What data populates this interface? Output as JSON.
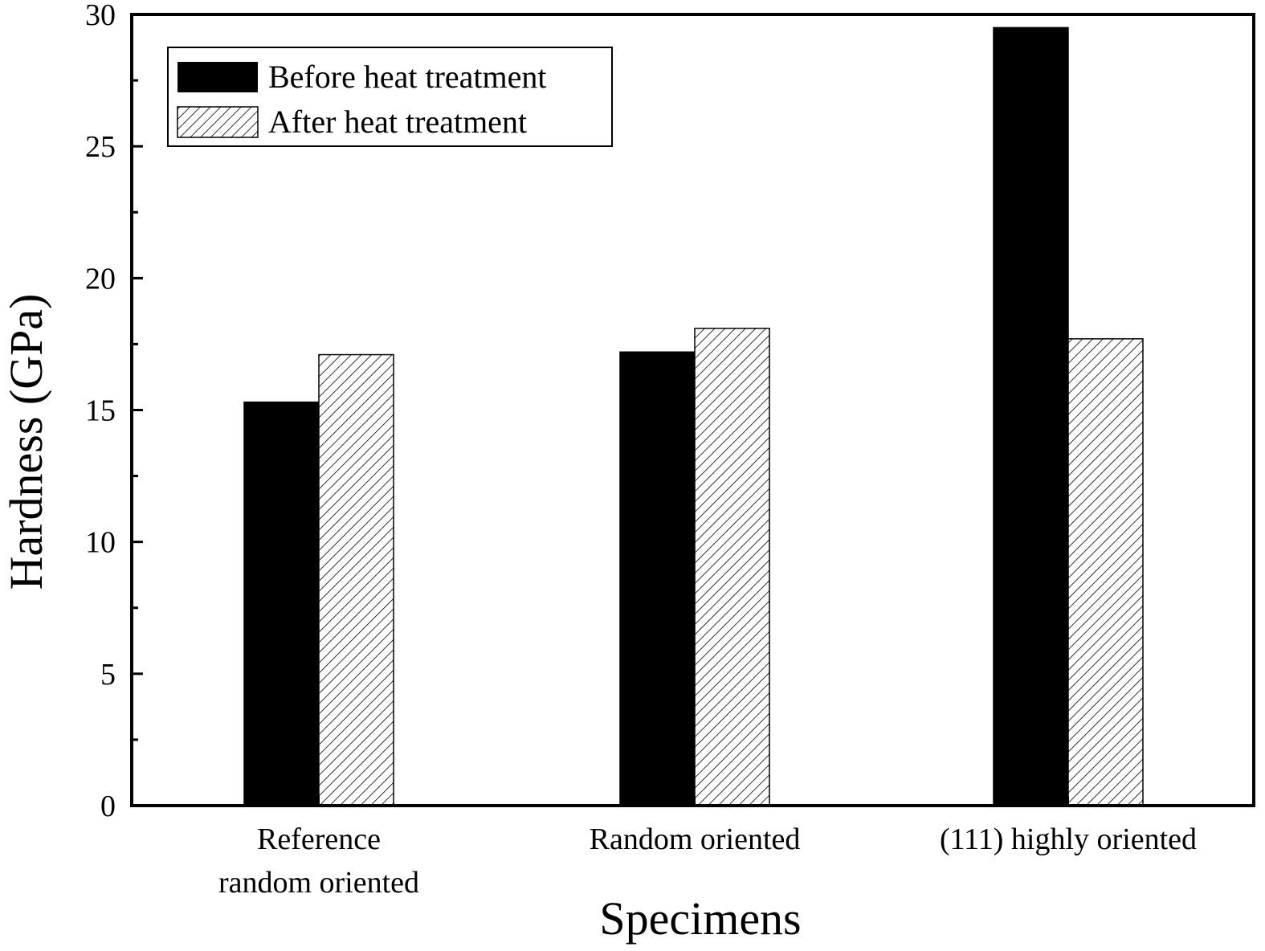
{
  "chart_data": {
    "type": "bar",
    "categories": [
      [
        "Reference",
        "random oriented"
      ],
      [
        "Random oriented"
      ],
      [
        "(111) highly oriented"
      ]
    ],
    "series": [
      {
        "name": "Before heat treatment",
        "values": [
          15.3,
          17.2,
          29.5
        ],
        "fill": "solid",
        "color": "#000000"
      },
      {
        "name": "After heat treatment",
        "values": [
          17.1,
          18.1,
          17.7
        ],
        "fill": "hatched",
        "color": "#000000"
      }
    ],
    "xlabel": "Specimens",
    "ylabel": "Hardness (GPa)",
    "ylim": [
      0,
      30
    ],
    "yticks": [
      "0",
      "5",
      "10",
      "15",
      "20",
      "25",
      "30"
    ],
    "legend_position": "top-left",
    "grid": false
  }
}
